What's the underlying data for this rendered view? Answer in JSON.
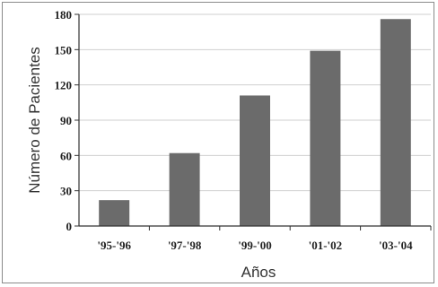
{
  "chart_data": {
    "type": "bar",
    "title": "",
    "xlabel": "Años",
    "ylabel": "Número de Pacientes",
    "categories": [
      "'95-'96",
      "'97-'98",
      "'99-'00",
      "'01-'02",
      "'03-'04"
    ],
    "values": [
      22,
      62,
      111,
      149,
      176
    ],
    "ylim": [
      0,
      180
    ],
    "yticks": [
      0,
      30,
      60,
      90,
      120,
      150,
      180
    ],
    "grid": true,
    "bar_color": "#6b6b6b",
    "grid_color": "#cfcfcf"
  }
}
